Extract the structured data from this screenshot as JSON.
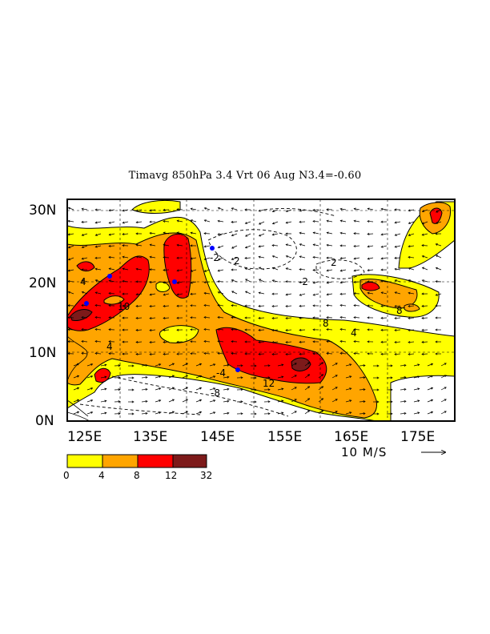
{
  "title": "Timavg 850hPa 3.4 Vrt 06 Aug N3.4=-0.60",
  "y_axis": {
    "labels": [
      "30N",
      "20N",
      "10N",
      "0N"
    ]
  },
  "x_axis": {
    "labels": [
      "125E",
      "135E",
      "145E",
      "155E",
      "165E",
      "175E"
    ]
  },
  "vector_legend": {
    "label": "10 M/S"
  },
  "colorbar": {
    "bins": [
      {
        "color": "#ffff00"
      },
      {
        "color": "#ffa500"
      },
      {
        "color": "#ff0000"
      },
      {
        "color": "#7d1a1a"
      }
    ],
    "labels": [
      "0",
      "4",
      "8",
      "12",
      "32"
    ]
  },
  "contour_labels": [
    "-2",
    "2",
    "-2",
    "2",
    "8",
    "4",
    "8",
    "4",
    "10",
    "4",
    "-4",
    "-8",
    "12"
  ],
  "colors": {
    "yellow": "#ffff00",
    "orange": "#ffa500",
    "red": "#ff0000",
    "darkred": "#7d1a1a",
    "marker": "#0000ff"
  }
}
